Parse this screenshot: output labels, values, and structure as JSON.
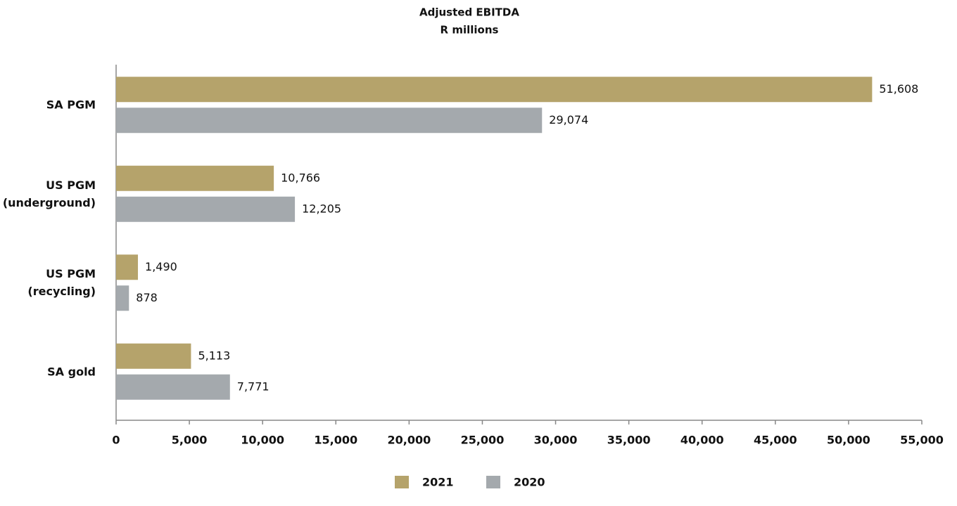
{
  "chart_data": {
    "type": "bar",
    "orientation": "horizontal",
    "title": "Adjusted EBITDA",
    "subtitle": "R millions",
    "categories": [
      "SA PGM",
      "US PGM\n(underground)",
      "US PGM\n(recycling)",
      "SA gold"
    ],
    "series": [
      {
        "name": "2021",
        "color": "#b5a36b",
        "values": [
          51608,
          10766,
          1490,
          5113
        ],
        "value_labels": [
          "51,608",
          "10,766",
          "1,490",
          "5,113"
        ]
      },
      {
        "name": "2020",
        "color": "#a4a9ad",
        "values": [
          29074,
          12205,
          878,
          7771
        ],
        "value_labels": [
          "29,074",
          "12,205",
          "878",
          "7,771"
        ]
      }
    ],
    "xlim": [
      0,
      55000
    ],
    "xticks": [
      0,
      {
        "value": 5000,
        "label": "5,000"
      },
      {
        "value": 10000,
        "label": "10,000"
      },
      {
        "value": 15000,
        "label": "15,000"
      },
      {
        "value": 20000,
        "label": "20,000"
      },
      {
        "value": 25000,
        "label": "25,000"
      },
      {
        "value": 30000,
        "label": "30,000"
      },
      {
        "value": 35000,
        "label": "35,000"
      },
      {
        "value": 40000,
        "label": "40,000"
      },
      {
        "value": 45000,
        "label": "45,000"
      },
      {
        "value": 50000,
        "label": "50,000"
      },
      {
        "value": 55000,
        "label": "55,000"
      }
    ],
    "legend": "bottom"
  }
}
